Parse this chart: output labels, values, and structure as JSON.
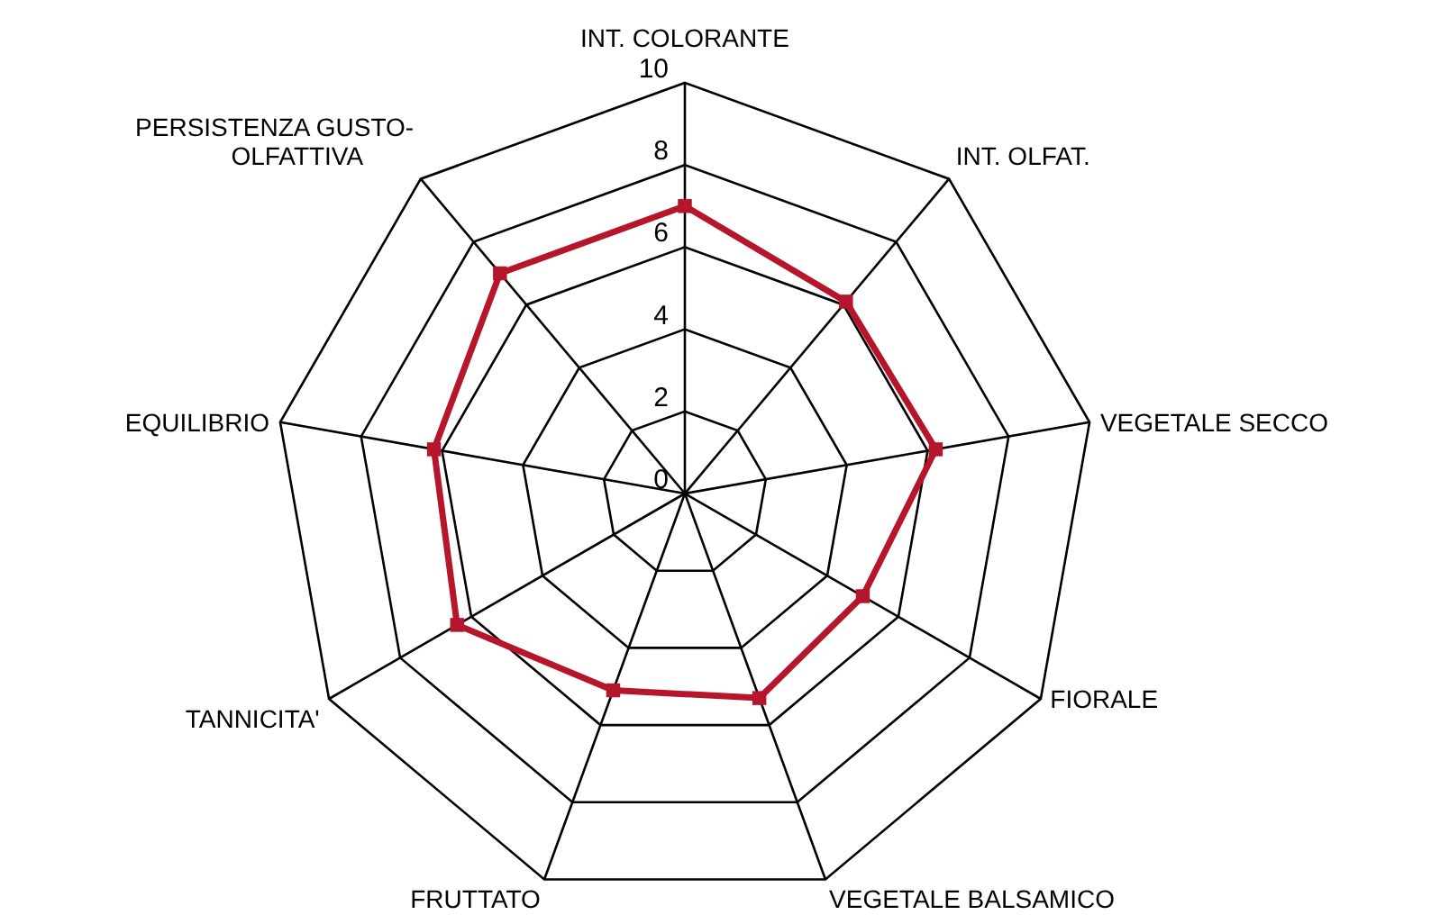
{
  "chart_data": {
    "type": "radar",
    "categories": [
      "INT. COLORANTE",
      "INT. OLFAT.",
      "VEGETALE SECCO",
      "FIORALE",
      "VEGETALE BALSAMICO",
      "FRUTTATO",
      "TANNICITA'",
      "EQUILIBRIO",
      "PERSISTENZA GUSTO-\nOLFATTIVA"
    ],
    "series": [
      {
        "color": "#b5162b",
        "values": [
          7,
          6.1,
          6.2,
          5,
          5.3,
          5.1,
          6.4,
          6.2,
          7
        ]
      }
    ],
    "ylim": [
      0,
      10
    ],
    "yticks": [
      0,
      2,
      4,
      6,
      8,
      10
    ],
    "marker": "square",
    "grid": true
  }
}
